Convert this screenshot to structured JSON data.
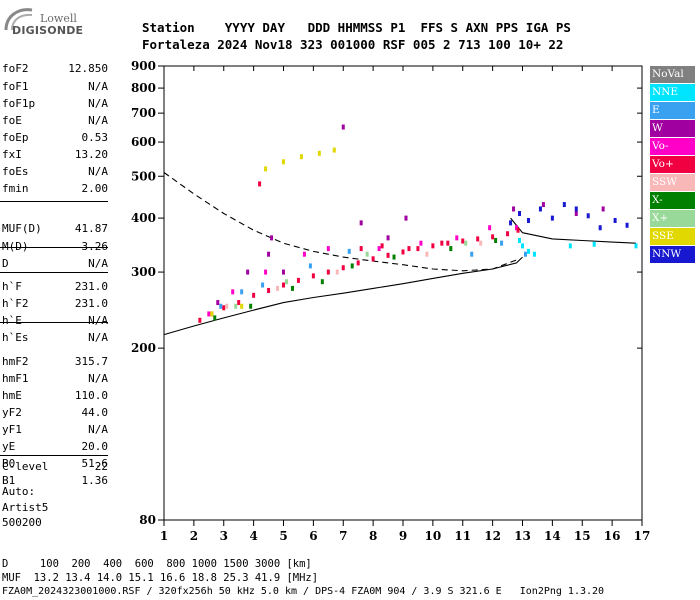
{
  "logo": {
    "line1": "Lowell",
    "line2": "DIGISONDE"
  },
  "header": {
    "row1": "Station    YYYY DAY   DDD HHMMSS P1  FFS S AXN PPS IGA PS",
    "row2": "Fortaleza 2024 Nov18 323 001000 RSF 005 2 713 100 10+ 22"
  },
  "params": [
    {
      "name": "foF2",
      "value": "12.850"
    },
    {
      "name": "foF1",
      "value": "N/A"
    },
    {
      "name": "foF1p",
      "value": "N/A"
    },
    {
      "name": "foE",
      "value": "N/A"
    },
    {
      "name": "foEp",
      "value": "0.53"
    },
    {
      "name": "fxI",
      "value": "13.20"
    },
    {
      "name": "foEs",
      "value": "N/A"
    },
    {
      "name": "fmin",
      "value": "2.00"
    },
    {
      "name": "MUF(D)",
      "value": "41.87"
    },
    {
      "name": "M(D)",
      "value": "3.26"
    },
    {
      "name": "D",
      "value": "N/A"
    },
    {
      "name": "h`F",
      "value": "231.0"
    },
    {
      "name": "h`F2",
      "value": "231.0"
    },
    {
      "name": "h`E",
      "value": "N/A"
    },
    {
      "name": "h`Es",
      "value": "N/A"
    },
    {
      "name": "hmF2",
      "value": "315.7"
    },
    {
      "name": "hmF1",
      "value": "N/A"
    },
    {
      "name": "hmE",
      "value": "110.0"
    },
    {
      "name": "yF2",
      "value": "44.0"
    },
    {
      "name": "yF1",
      "value": "N/A"
    },
    {
      "name": "yE",
      "value": "20.0"
    },
    {
      "name": "B0",
      "value": "51.6"
    },
    {
      "name": "B1",
      "value": "1.36"
    },
    {
      "name": "C-level",
      "value": "22"
    }
  ],
  "auto": {
    "line1": "Auto:",
    "line2": "Artist5",
    "line3": "500200"
  },
  "legend": [
    {
      "label": "NoVal",
      "bg": "#808080",
      "fg": "#ffffff"
    },
    {
      "label": "NNE",
      "bg": "#00e5ff",
      "fg": "#ffffff"
    },
    {
      "label": "E",
      "bg": "#3aa0f0",
      "fg": "#ffffff"
    },
    {
      "label": "W",
      "bg": "#a000a0",
      "fg": "#ffffff"
    },
    {
      "label": "Vo-",
      "bg": "#ff00c8",
      "fg": "#ffffff"
    },
    {
      "label": "Vo+",
      "bg": "#f00040",
      "fg": "#ffffff"
    },
    {
      "label": "SSW",
      "bg": "#f8b8b8",
      "fg": "#ffffff"
    },
    {
      "label": "X-",
      "bg": "#008000",
      "fg": "#ffffff"
    },
    {
      "label": "X+",
      "bg": "#98d898",
      "fg": "#ffffff"
    },
    {
      "label": "SSE",
      "bg": "#e0d800",
      "fg": "#ffffff"
    },
    {
      "label": "NNW",
      "bg": "#1818d0",
      "fg": "#ffffff"
    }
  ],
  "bottom": {
    "line1": "D     100  200  400  600  800 1000 1500 3000 [km]",
    "line2": "MUF  13.2 13.4 14.0 15.1 16.6 18.8 25.3 41.9 [MHz]",
    "line3": "FZA0M_2024323001000.RSF / 320fx256h 50 kHz 5.0 km / DPS-4 FZA0M 904 / 3.9 S 321.6 E   Ion2Png 1.3.20"
  },
  "chart_data": {
    "type": "scatter",
    "title": "",
    "xlabel": "",
    "ylabel": "",
    "xlim": [
      1,
      17
    ],
    "ylim": [
      80,
      900
    ],
    "x_ticks": [
      1,
      2,
      3,
      4,
      5,
      6,
      7,
      8,
      9,
      10,
      11,
      12,
      13,
      14,
      15,
      16,
      17
    ],
    "y_ticks": [
      80,
      200,
      300,
      400,
      500,
      600,
      700,
      800,
      900
    ],
    "y_scale": "log",
    "grid": false,
    "legend_position": "right",
    "series": [
      {
        "name": "NoVal",
        "color": "#808080",
        "points": []
      },
      {
        "name": "NNE",
        "color": "#00e5ff",
        "points": [
          [
            12.9,
            355
          ],
          [
            13.0,
            345
          ],
          [
            13.2,
            335
          ],
          [
            13.4,
            330
          ],
          [
            14.6,
            345
          ],
          [
            15.4,
            348
          ],
          [
            16.8,
            345
          ]
        ]
      },
      {
        "name": "E",
        "color": "#3aa0f0",
        "points": [
          [
            2.9,
            250
          ],
          [
            3.6,
            270
          ],
          [
            4.3,
            280
          ],
          [
            5.9,
            310
          ],
          [
            7.2,
            335
          ],
          [
            11.3,
            330
          ],
          [
            12.3,
            350
          ],
          [
            13.1,
            330
          ]
        ]
      },
      {
        "name": "W",
        "color": "#a000a0",
        "points": [
          [
            2.8,
            255
          ],
          [
            3.8,
            300
          ],
          [
            4.5,
            330
          ],
          [
            4.6,
            360
          ],
          [
            5.0,
            300
          ],
          [
            7.0,
            650
          ],
          [
            7.6,
            390
          ],
          [
            8.5,
            360
          ],
          [
            9.1,
            400
          ],
          [
            12.7,
            420
          ],
          [
            13.7,
            430
          ],
          [
            14.8,
            410
          ],
          [
            15.7,
            420
          ]
        ]
      },
      {
        "name": "Vo-",
        "color": "#ff00c8",
        "points": [
          [
            2.5,
            240
          ],
          [
            3.3,
            270
          ],
          [
            4.4,
            300
          ],
          [
            5.7,
            330
          ],
          [
            6.5,
            340
          ],
          [
            8.2,
            340
          ],
          [
            9.6,
            350
          ],
          [
            10.8,
            360
          ],
          [
            11.9,
            380
          ],
          [
            12.8,
            380
          ]
        ]
      },
      {
        "name": "Vo+",
        "color": "#f00040",
        "points": [
          [
            2.2,
            232
          ],
          [
            2.6,
            240
          ],
          [
            3.0,
            248
          ],
          [
            3.5,
            255
          ],
          [
            4.0,
            265
          ],
          [
            4.5,
            272
          ],
          [
            5.0,
            280
          ],
          [
            5.5,
            287
          ],
          [
            6.0,
            294
          ],
          [
            6.5,
            300
          ],
          [
            7.0,
            307
          ],
          [
            7.5,
            315
          ],
          [
            8.0,
            322
          ],
          [
            8.5,
            328
          ],
          [
            9.0,
            334
          ],
          [
            9.5,
            340
          ],
          [
            10.0,
            345
          ],
          [
            10.5,
            350
          ],
          [
            11.0,
            354
          ],
          [
            11.5,
            358
          ],
          [
            12.0,
            362
          ],
          [
            12.5,
            368
          ],
          [
            12.85,
            375
          ],
          [
            4.2,
            480
          ],
          [
            7.6,
            340
          ],
          [
            8.3,
            345
          ],
          [
            9.2,
            340
          ],
          [
            10.3,
            350
          ]
        ]
      },
      {
        "name": "SSW",
        "color": "#f8b8b8",
        "points": [
          [
            3.1,
            250
          ],
          [
            4.8,
            275
          ],
          [
            6.8,
            300
          ],
          [
            9.8,
            330
          ],
          [
            11.6,
            350
          ]
        ]
      },
      {
        "name": "X-",
        "color": "#008000",
        "points": [
          [
            2.7,
            235
          ],
          [
            3.9,
            250
          ],
          [
            5.3,
            275
          ],
          [
            6.3,
            285
          ],
          [
            7.3,
            310
          ],
          [
            8.7,
            325
          ],
          [
            10.6,
            340
          ],
          [
            12.1,
            355
          ]
        ]
      },
      {
        "name": "X+",
        "color": "#98d898",
        "points": [
          [
            3.4,
            250
          ],
          [
            5.1,
            285
          ],
          [
            7.8,
            330
          ],
          [
            11.1,
            350
          ]
        ]
      },
      {
        "name": "SSE",
        "color": "#e0d800",
        "points": [
          [
            4.4,
            520
          ],
          [
            5.0,
            540
          ],
          [
            5.6,
            555
          ],
          [
            6.2,
            565
          ],
          [
            6.7,
            575
          ],
          [
            2.6,
            240
          ],
          [
            3.6,
            250
          ]
        ]
      },
      {
        "name": "NNW",
        "color": "#1818d0",
        "points": [
          [
            12.6,
            390
          ],
          [
            12.9,
            410
          ],
          [
            13.2,
            395
          ],
          [
            13.6,
            420
          ],
          [
            14.0,
            400
          ],
          [
            14.4,
            430
          ],
          [
            14.8,
            420
          ],
          [
            15.2,
            405
          ],
          [
            15.6,
            380
          ],
          [
            16.1,
            395
          ],
          [
            16.5,
            385
          ]
        ]
      }
    ],
    "traces": [
      {
        "style": "dashed",
        "points": [
          [
            1,
            510
          ],
          [
            2,
            455
          ],
          [
            3,
            410
          ],
          [
            4,
            375
          ],
          [
            5,
            350
          ],
          [
            6,
            335
          ],
          [
            7,
            325
          ],
          [
            8,
            318
          ],
          [
            9,
            312
          ],
          [
            10,
            305
          ],
          [
            11,
            302
          ],
          [
            12,
            305
          ],
          [
            12.8,
            320
          ]
        ]
      },
      {
        "style": "solid",
        "points": [
          [
            1,
            215
          ],
          [
            2,
            225
          ],
          [
            3,
            235
          ],
          [
            4,
            245
          ],
          [
            5,
            255
          ],
          [
            6,
            262
          ],
          [
            7,
            268
          ],
          [
            8,
            275
          ],
          [
            9,
            282
          ],
          [
            10,
            290
          ],
          [
            11,
            298
          ],
          [
            12,
            305
          ],
          [
            12.8,
            315
          ],
          [
            13.0,
            325
          ]
        ]
      },
      {
        "style": "solid",
        "points": [
          [
            12.6,
            400
          ],
          [
            13.0,
            370
          ],
          [
            14,
            358
          ],
          [
            15,
            355
          ],
          [
            16,
            352
          ],
          [
            16.8,
            350
          ]
        ]
      }
    ]
  }
}
